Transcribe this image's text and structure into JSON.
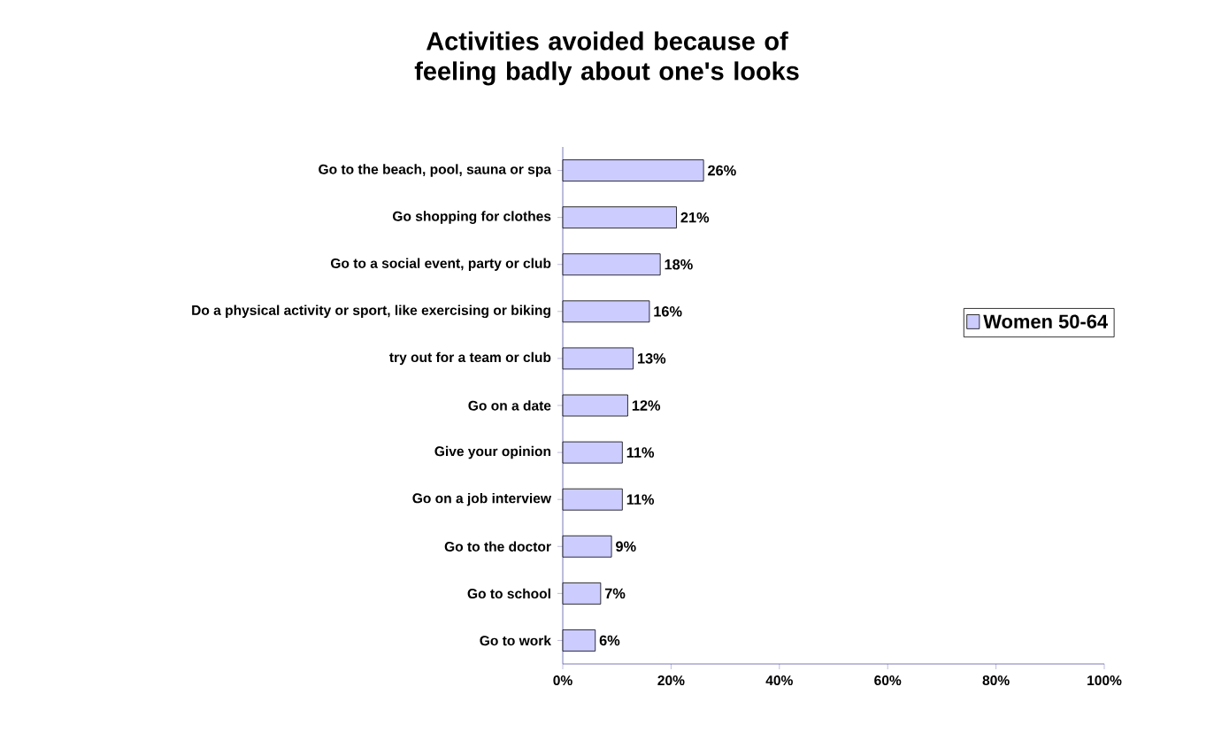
{
  "chart_data": {
    "type": "bar",
    "orientation": "horizontal",
    "title": "Activities avoided because of feeling badly about one's looks",
    "categories": [
      "Go to the beach, pool, sauna or spa",
      "Go shopping for clothes",
      "Go to a social event, party or club",
      "Do a physical activity or sport, like exercising or biking",
      "try out for a team or club",
      "Go on a date",
      "Give your opinion",
      "Go on a job interview",
      "Go to the doctor",
      "Go to school",
      "Go to work"
    ],
    "series": [
      {
        "name": "Women 50-64",
        "color": "#ccccff",
        "values": [
          26,
          21,
          18,
          16,
          13,
          12,
          11,
          11,
          9,
          7,
          6
        ],
        "value_labels": [
          "26%",
          "21%",
          "18%",
          "16%",
          "13%",
          "12%",
          "11%",
          "11%",
          "9%",
          "7%",
          "6%"
        ]
      }
    ],
    "xlim": [
      0,
      100
    ],
    "xticks": [
      {
        "value": 0,
        "label": "0%"
      },
      {
        "value": 20,
        "label": "20%"
      },
      {
        "value": 40,
        "label": "40%"
      },
      {
        "value": 60,
        "label": "60%"
      },
      {
        "value": 80,
        "label": "80%"
      },
      {
        "value": 100,
        "label": "100%"
      }
    ],
    "grid": false,
    "legend": "right"
  }
}
